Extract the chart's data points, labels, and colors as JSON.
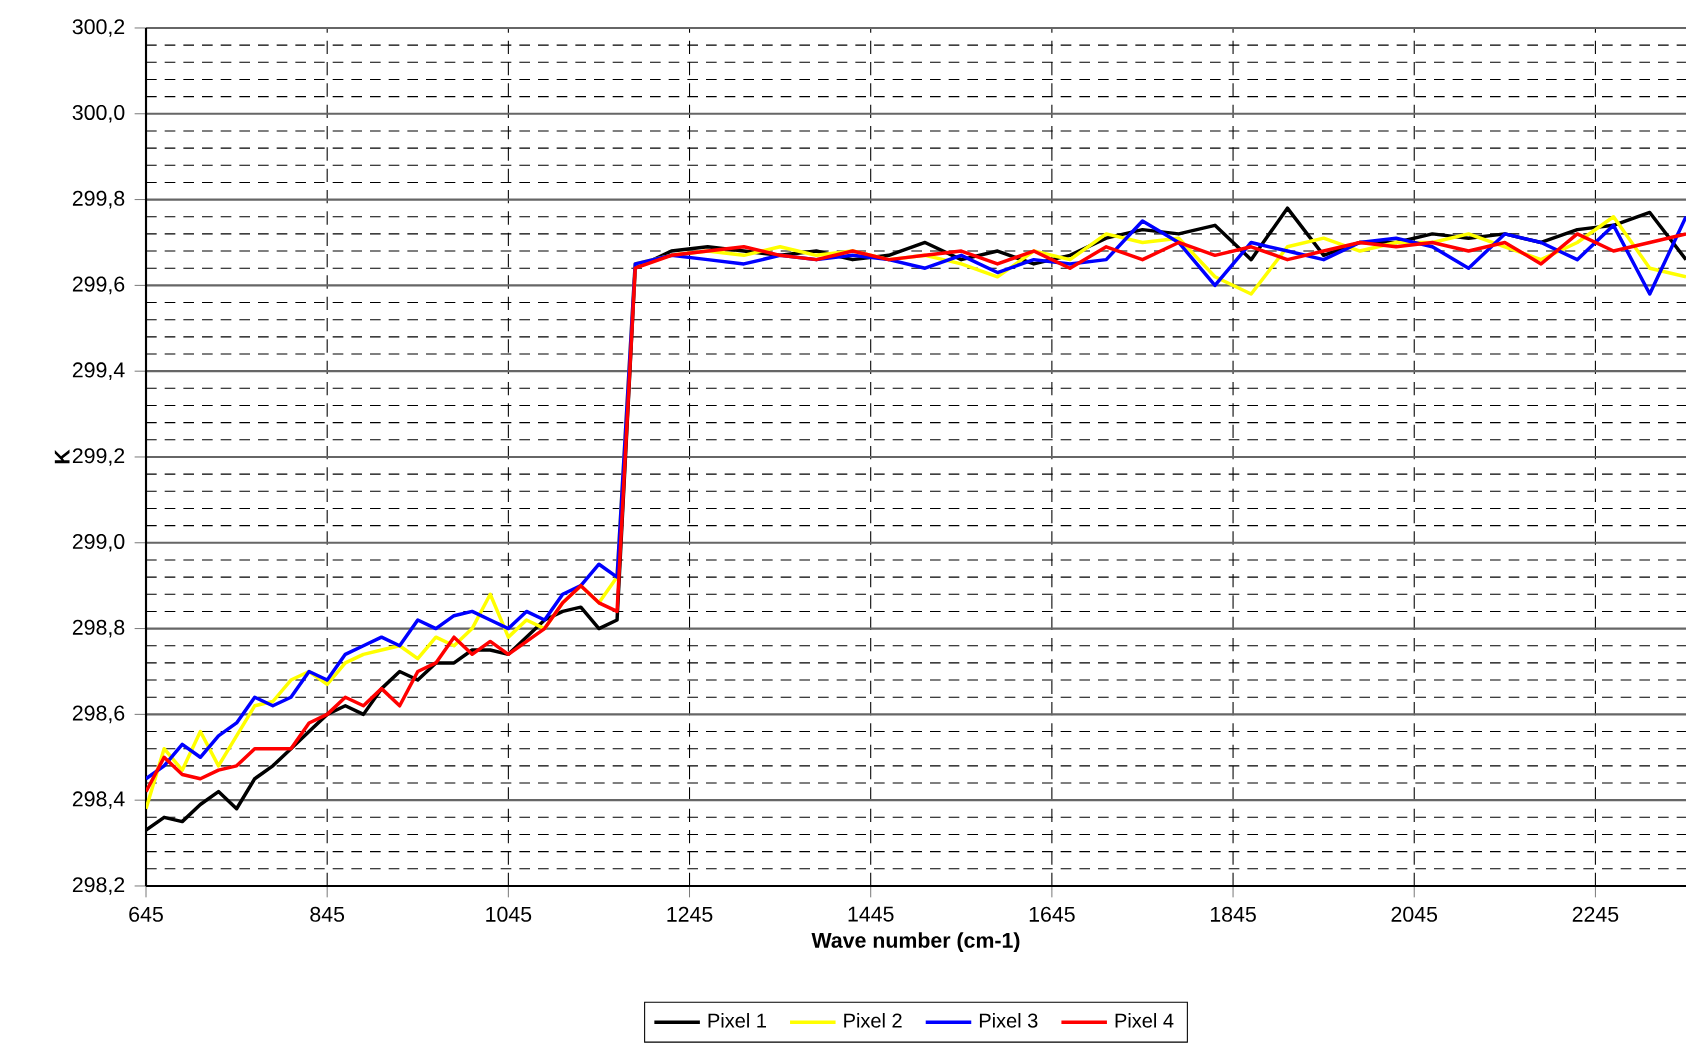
{
  "chart_data": {
    "type": "line",
    "xlabel": "Wave number (cm-1)",
    "ylabel": "K",
    "x": [
      645,
      665,
      685,
      705,
      725,
      745,
      765,
      785,
      805,
      825,
      845,
      865,
      885,
      905,
      925,
      945,
      965,
      985,
      1005,
      1025,
      1045,
      1065,
      1085,
      1105,
      1125,
      1145,
      1165,
      1185,
      1225,
      1265,
      1305,
      1345,
      1385,
      1425,
      1465,
      1505,
      1545,
      1585,
      1625,
      1665,
      1705,
      1745,
      1785,
      1825,
      1865,
      1905,
      1945,
      1985,
      2025,
      2065,
      2105,
      2145,
      2185,
      2225,
      2265,
      2305,
      2345
    ],
    "series": [
      {
        "name": "Pixel 1",
        "color": "#000000",
        "values": [
          298.33,
          298.36,
          298.35,
          298.39,
          298.42,
          298.38,
          298.45,
          298.48,
          298.52,
          298.56,
          298.6,
          298.62,
          298.6,
          298.66,
          298.7,
          298.68,
          298.72,
          298.72,
          298.75,
          298.75,
          298.74,
          298.78,
          298.82,
          298.84,
          298.85,
          298.8,
          298.82,
          299.64,
          299.68,
          299.69,
          299.68,
          299.67,
          299.68,
          299.66,
          299.67,
          299.7,
          299.66,
          299.68,
          299.65,
          299.67,
          299.71,
          299.73,
          299.72,
          299.74,
          299.66,
          299.78,
          299.67,
          299.7,
          299.7,
          299.72,
          299.71,
          299.72,
          299.7,
          299.73,
          299.74,
          299.77,
          299.66
        ]
      },
      {
        "name": "Pixel 2",
        "color": "#ffff00",
        "values": [
          298.38,
          298.52,
          298.47,
          298.56,
          298.48,
          298.55,
          298.62,
          298.63,
          298.68,
          298.7,
          298.67,
          298.72,
          298.74,
          298.75,
          298.76,
          298.73,
          298.78,
          298.76,
          298.8,
          298.88,
          298.78,
          298.82,
          298.8,
          298.86,
          298.9,
          298.86,
          298.92,
          299.65,
          299.67,
          299.68,
          299.67,
          299.69,
          299.67,
          299.68,
          299.66,
          299.67,
          299.65,
          299.62,
          299.68,
          299.66,
          299.72,
          299.7,
          299.71,
          299.62,
          299.58,
          299.69,
          299.71,
          299.68,
          299.7,
          299.7,
          299.72,
          299.69,
          299.66,
          299.7,
          299.76,
          299.64,
          299.62
        ]
      },
      {
        "name": "Pixel 3",
        "color": "#0000ff",
        "values": [
          298.45,
          298.48,
          298.53,
          298.5,
          298.55,
          298.58,
          298.64,
          298.62,
          298.64,
          298.7,
          298.68,
          298.74,
          298.76,
          298.78,
          298.76,
          298.82,
          298.8,
          298.83,
          298.84,
          298.82,
          298.8,
          298.84,
          298.82,
          298.88,
          298.9,
          298.95,
          298.92,
          299.65,
          299.67,
          299.66,
          299.65,
          299.67,
          299.66,
          299.67,
          299.66,
          299.64,
          299.67,
          299.63,
          299.66,
          299.65,
          299.66,
          299.75,
          299.7,
          299.6,
          299.7,
          299.68,
          299.66,
          299.7,
          299.71,
          299.69,
          299.64,
          299.72,
          299.7,
          299.66,
          299.74,
          299.58,
          299.76
        ]
      },
      {
        "name": "Pixel 4",
        "color": "#ff0000",
        "values": [
          298.42,
          298.5,
          298.46,
          298.45,
          298.47,
          298.48,
          298.52,
          298.52,
          298.52,
          298.58,
          298.6,
          298.64,
          298.62,
          298.66,
          298.62,
          298.7,
          298.72,
          298.78,
          298.74,
          298.77,
          298.74,
          298.77,
          298.8,
          298.86,
          298.9,
          298.86,
          298.84,
          299.64,
          299.67,
          299.68,
          299.69,
          299.67,
          299.66,
          299.68,
          299.66,
          299.67,
          299.68,
          299.65,
          299.68,
          299.64,
          299.69,
          299.66,
          299.7,
          299.67,
          299.69,
          299.66,
          299.68,
          299.7,
          299.69,
          299.7,
          299.68,
          299.7,
          299.65,
          299.72,
          299.68,
          299.7,
          299.72
        ]
      }
    ],
    "xlim": [
      645,
      2345
    ],
    "ylim": [
      298.2,
      300.2
    ],
    "xticks": [
      645,
      845,
      1045,
      1245,
      1445,
      1645,
      1845,
      2045,
      2245
    ],
    "yticks": [
      {
        "value": 298.2,
        "label": "298,2"
      },
      {
        "value": 298.4,
        "label": "298,4"
      },
      {
        "value": 298.6,
        "label": "298,6"
      },
      {
        "value": 298.8,
        "label": "298,8"
      },
      {
        "value": 299.0,
        "label": "299,0"
      },
      {
        "value": 299.2,
        "label": "299,2"
      },
      {
        "value": 299.4,
        "label": "299,4"
      },
      {
        "value": 299.6,
        "label": "299,6"
      },
      {
        "value": 299.8,
        "label": "299,8"
      },
      {
        "value": 300.0,
        "label": "300,0"
      },
      {
        "value": 300.2,
        "label": "300,2"
      }
    ],
    "grid": true,
    "legend": "bottom",
    "marker": "none",
    "line_style": "solid"
  }
}
